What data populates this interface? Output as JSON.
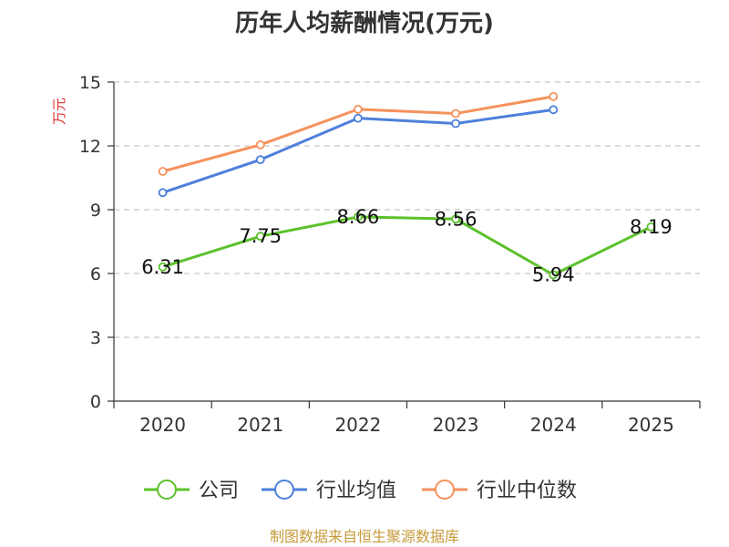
{
  "chart_data": {
    "type": "line",
    "title": "历年人均薪酬情况(万元)",
    "ylabel": "万元",
    "ylim": [
      0,
      15
    ],
    "yticks": [
      0,
      3,
      6,
      9,
      12,
      15
    ],
    "categories": [
      "2020",
      "2021",
      "2022",
      "2023",
      "2024",
      "2025"
    ],
    "grid": true,
    "legend_position": "bottom",
    "series": [
      {
        "name": "公司",
        "color": "#5cc12c",
        "values": [
          6.31,
          7.75,
          8.66,
          8.56,
          5.94,
          8.19
        ],
        "labels": [
          "6.31",
          "7.75",
          "8.66",
          "8.56",
          "5.94",
          "8.19"
        ]
      },
      {
        "name": "行业均值",
        "color": "#4e80db",
        "values": [
          9.8,
          11.35,
          13.3,
          13.05,
          13.7,
          null
        ]
      },
      {
        "name": "行业中位数",
        "color": "#f5925c",
        "values": [
          10.8,
          12.05,
          13.72,
          13.52,
          14.32,
          null
        ]
      }
    ]
  },
  "footer": {
    "source_text": "制图数据来自恒生聚源数据库",
    "color": "#c79a3a"
  },
  "axis_label_color": "#e03030"
}
